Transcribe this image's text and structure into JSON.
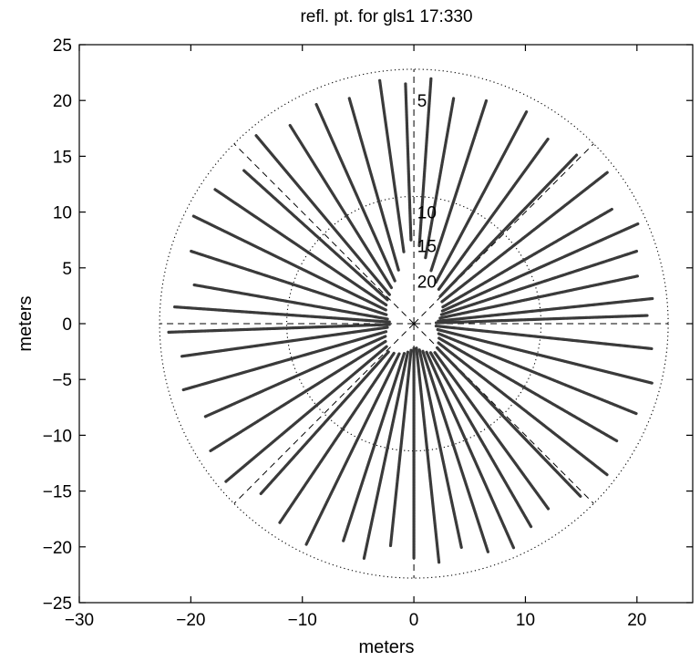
{
  "chart_data": {
    "type": "scatter",
    "title": "refl. pt. for gls1 17:330",
    "xlabel": "meters",
    "ylabel": "meters",
    "xlim": [
      -30,
      25
    ],
    "ylim": [
      -25,
      25
    ],
    "xticks": [
      -30,
      -20,
      -10,
      0,
      10,
      20
    ],
    "yticks": [
      -25,
      -20,
      -15,
      -10,
      -5,
      0,
      5,
      10,
      15,
      20,
      25
    ],
    "xtick_labels": [
      "−30",
      "−20",
      "−10",
      "0",
      "10",
      "20"
    ],
    "ytick_labels": [
      "−25",
      "−20",
      "−15",
      "−10",
      "−5",
      "0",
      "5",
      "10",
      "15",
      "20",
      "25"
    ],
    "grid": false,
    "legend": "none",
    "marker_color": "#3a3a3a",
    "polar_grid": {
      "center": [
        0,
        0
      ],
      "ring_radii": [
        22.8,
        11.4
      ],
      "ring_labels": [
        {
          "text": "5",
          "x": 0.3,
          "y": 20
        },
        {
          "text": "10",
          "x": 0.3,
          "y": 10
        },
        {
          "text": "15",
          "x": 0.3,
          "y": 7
        },
        {
          "text": "20",
          "x": 0.3,
          "y": 3.8
        }
      ],
      "spoke_angles_deg": [
        0,
        45,
        90,
        135,
        180,
        225,
        270,
        315
      ]
    },
    "tracks": [
      {
        "az": 2,
        "r0": 2.0,
        "r1": 21.0
      },
      {
        "az": 6,
        "r0": 2.2,
        "r1": 21.5
      },
      {
        "az": 12,
        "r0": 2.4,
        "r1": 20.5
      },
      {
        "az": 18,
        "r0": 2.6,
        "r1": 21.0
      },
      {
        "az": 24,
        "r0": 2.8,
        "r1": 22.0
      },
      {
        "az": 30,
        "r0": 3.0,
        "r1": 20.5
      },
      {
        "az": 38,
        "r0": 3.2,
        "r1": 22.0
      },
      {
        "az": 46,
        "r0": 3.4,
        "r1": 21.0
      },
      {
        "az": 54,
        "r0": 3.8,
        "r1": 20.5
      },
      {
        "az": 62,
        "r0": 4.2,
        "r1": 21.5
      },
      {
        "az": 72,
        "r0": 5.0,
        "r1": 21.0
      },
      {
        "az": 80,
        "r0": 6.0,
        "r1": 20.5
      },
      {
        "az": 86,
        "r0": 7.0,
        "r1": 22.0
      },
      {
        "az": 92,
        "r0": 7.5,
        "r1": 21.5
      },
      {
        "az": 98,
        "r0": 6.5,
        "r1": 22.0
      },
      {
        "az": 106,
        "r0": 5.0,
        "r1": 21.0
      },
      {
        "az": 114,
        "r0": 4.2,
        "r1": 21.5
      },
      {
        "az": 122,
        "r0": 3.8,
        "r1": 21.0
      },
      {
        "az": 130,
        "r0": 3.4,
        "r1": 22.0
      },
      {
        "az": 138,
        "r0": 3.2,
        "r1": 20.5
      },
      {
        "az": 146,
        "r0": 3.0,
        "r1": 21.5
      },
      {
        "az": 154,
        "r0": 2.8,
        "r1": 22.0
      },
      {
        "az": 162,
        "r0": 2.6,
        "r1": 21.0
      },
      {
        "az": 170,
        "r0": 2.4,
        "r1": 20.0
      },
      {
        "az": 176,
        "r0": 2.2,
        "r1": 21.5
      },
      {
        "az": 182,
        "r0": 2.2,
        "r1": 22.0
      },
      {
        "az": 188,
        "r0": 2.4,
        "r1": 21.0
      },
      {
        "az": 196,
        "r0": 2.6,
        "r1": 21.5
      },
      {
        "az": 204,
        "r0": 2.8,
        "r1": 20.5
      },
      {
        "az": 212,
        "r0": 3.0,
        "r1": 21.5
      },
      {
        "az": 220,
        "r0": 3.2,
        "r1": 22.0
      },
      {
        "az": 228,
        "r0": 3.4,
        "r1": 20.5
      },
      {
        "az": 236,
        "r0": 3.2,
        "r1": 21.5
      },
      {
        "az": 244,
        "r0": 3.0,
        "r1": 22.0
      },
      {
        "az": 252,
        "r0": 2.8,
        "r1": 20.5
      },
      {
        "az": 258,
        "r0": 2.6,
        "r1": 21.5
      },
      {
        "az": 264,
        "r0": 2.4,
        "r1": 20.0
      },
      {
        "az": 270,
        "r0": 2.2,
        "r1": 21.0
      },
      {
        "az": 276,
        "r0": 2.2,
        "r1": 21.5
      },
      {
        "az": 282,
        "r0": 2.4,
        "r1": 20.5
      },
      {
        "az": 288,
        "r0": 2.6,
        "r1": 21.5
      },
      {
        "az": 294,
        "r0": 2.8,
        "r1": 22.0
      },
      {
        "az": 300,
        "r0": 3.0,
        "r1": 21.0
      },
      {
        "az": 306,
        "r0": 3.2,
        "r1": 20.5
      },
      {
        "az": 314,
        "r0": 3.0,
        "r1": 21.5
      },
      {
        "az": 322,
        "r0": 2.8,
        "r1": 22.0
      },
      {
        "az": 330,
        "r0": 2.6,
        "r1": 21.0
      },
      {
        "az": 338,
        "r0": 2.4,
        "r1": 21.5
      },
      {
        "az": 346,
        "r0": 2.2,
        "r1": 22.0
      },
      {
        "az": 354,
        "r0": 2.0,
        "r1": 21.5
      }
    ]
  }
}
